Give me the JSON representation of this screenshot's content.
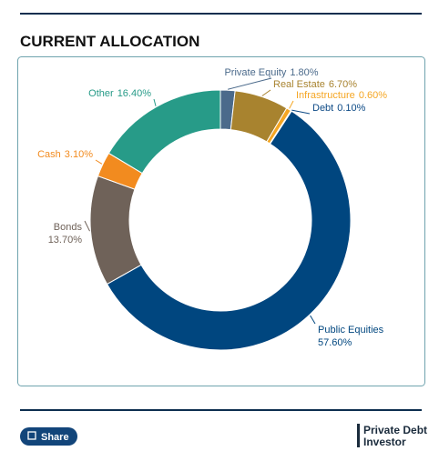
{
  "chart_data": {
    "type": "donut",
    "title": "CURRENT ALLOCATION",
    "categories": [
      "Private Equity",
      "Real Estate",
      "Infrastructure",
      "Debt",
      "Public Equities",
      "Bonds",
      "Cash",
      "Other"
    ],
    "values": [
      1.8,
      6.7,
      0.6,
      0.1,
      57.6,
      13.7,
      3.1,
      16.4
    ],
    "value_labels": [
      "1.80%",
      "6.70%",
      "0.60%",
      "0.10%",
      "57.60%",
      "13.70%",
      "3.10%",
      "16.40%"
    ],
    "colors": [
      "#4b6a8b",
      "#a8832f",
      "#f5a623",
      "#0d4a86",
      "#00467f",
      "#6f6259",
      "#f28b1f",
      "#279b88"
    ]
  },
  "share_button": "Share",
  "logo": [
    "Private Debt",
    "Investor"
  ]
}
